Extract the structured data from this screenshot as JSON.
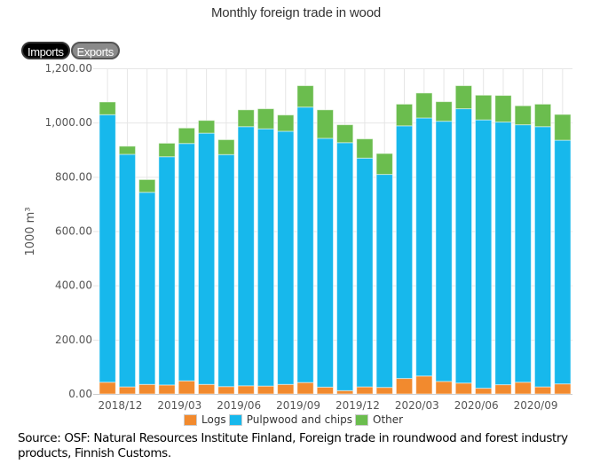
{
  "controls": {
    "imports_label": "Imports",
    "exports_label": "Exports",
    "active": "Imports"
  },
  "source_text": "Source: OSF: Natural Resources Institute Finland, Foreign trade in roundwood and forest industry products, Finnish Customs.",
  "chart_data": {
    "type": "bar",
    "stacked": true,
    "title": "Monthly foreign trade in wood",
    "xlabel": "",
    "ylabel": "1000 m³",
    "ylim": [
      0,
      1200
    ],
    "yticks": [
      0,
      200,
      400,
      600,
      800,
      1000,
      1200
    ],
    "ytick_labels": [
      "0.00",
      "200.00",
      "400.00",
      "600.00",
      "800.00",
      "1,000.00",
      "1,200.00"
    ],
    "grid": true,
    "legend_position": "bottom",
    "categories": [
      "2018/11",
      "2018/12",
      "2019/01",
      "2019/02",
      "2019/03",
      "2019/04",
      "2019/05",
      "2019/06",
      "2019/07",
      "2019/08",
      "2019/09",
      "2019/10",
      "2019/11",
      "2019/12",
      "2020/01",
      "2020/02",
      "2020/03",
      "2020/04",
      "2020/05",
      "2020/06",
      "2020/07",
      "2020/08",
      "2020/09",
      "2020/10"
    ],
    "xtick_labels_shown": [
      "2018/12",
      "2019/03",
      "2019/06",
      "2019/09",
      "2019/12",
      "2020/03",
      "2020/06",
      "2020/09"
    ],
    "series": [
      {
        "name": "Logs",
        "color": "#f28a2e",
        "values": [
          43,
          26,
          35,
          33,
          48,
          35,
          27,
          30,
          29,
          35,
          42,
          25,
          12,
          26,
          24,
          57,
          66,
          46,
          40,
          21,
          34,
          43,
          26,
          37
        ]
      },
      {
        "name": "Pulpwood and chips",
        "color": "#17b8ec",
        "values": [
          986,
          857,
          708,
          841,
          875,
          926,
          855,
          955,
          948,
          933,
          1015,
          917,
          914,
          843,
          785,
          931,
          951,
          959,
          1011,
          989,
          968,
          949,
          959,
          898
        ]
      },
      {
        "name": "Other",
        "color": "#6bbd4e",
        "values": [
          47,
          30,
          47,
          50,
          57,
          47,
          55,
          62,
          74,
          60,
          79,
          105,
          66,
          71,
          77,
          80,
          92,
          72,
          85,
          91,
          98,
          70,
          83,
          95
        ]
      }
    ]
  }
}
